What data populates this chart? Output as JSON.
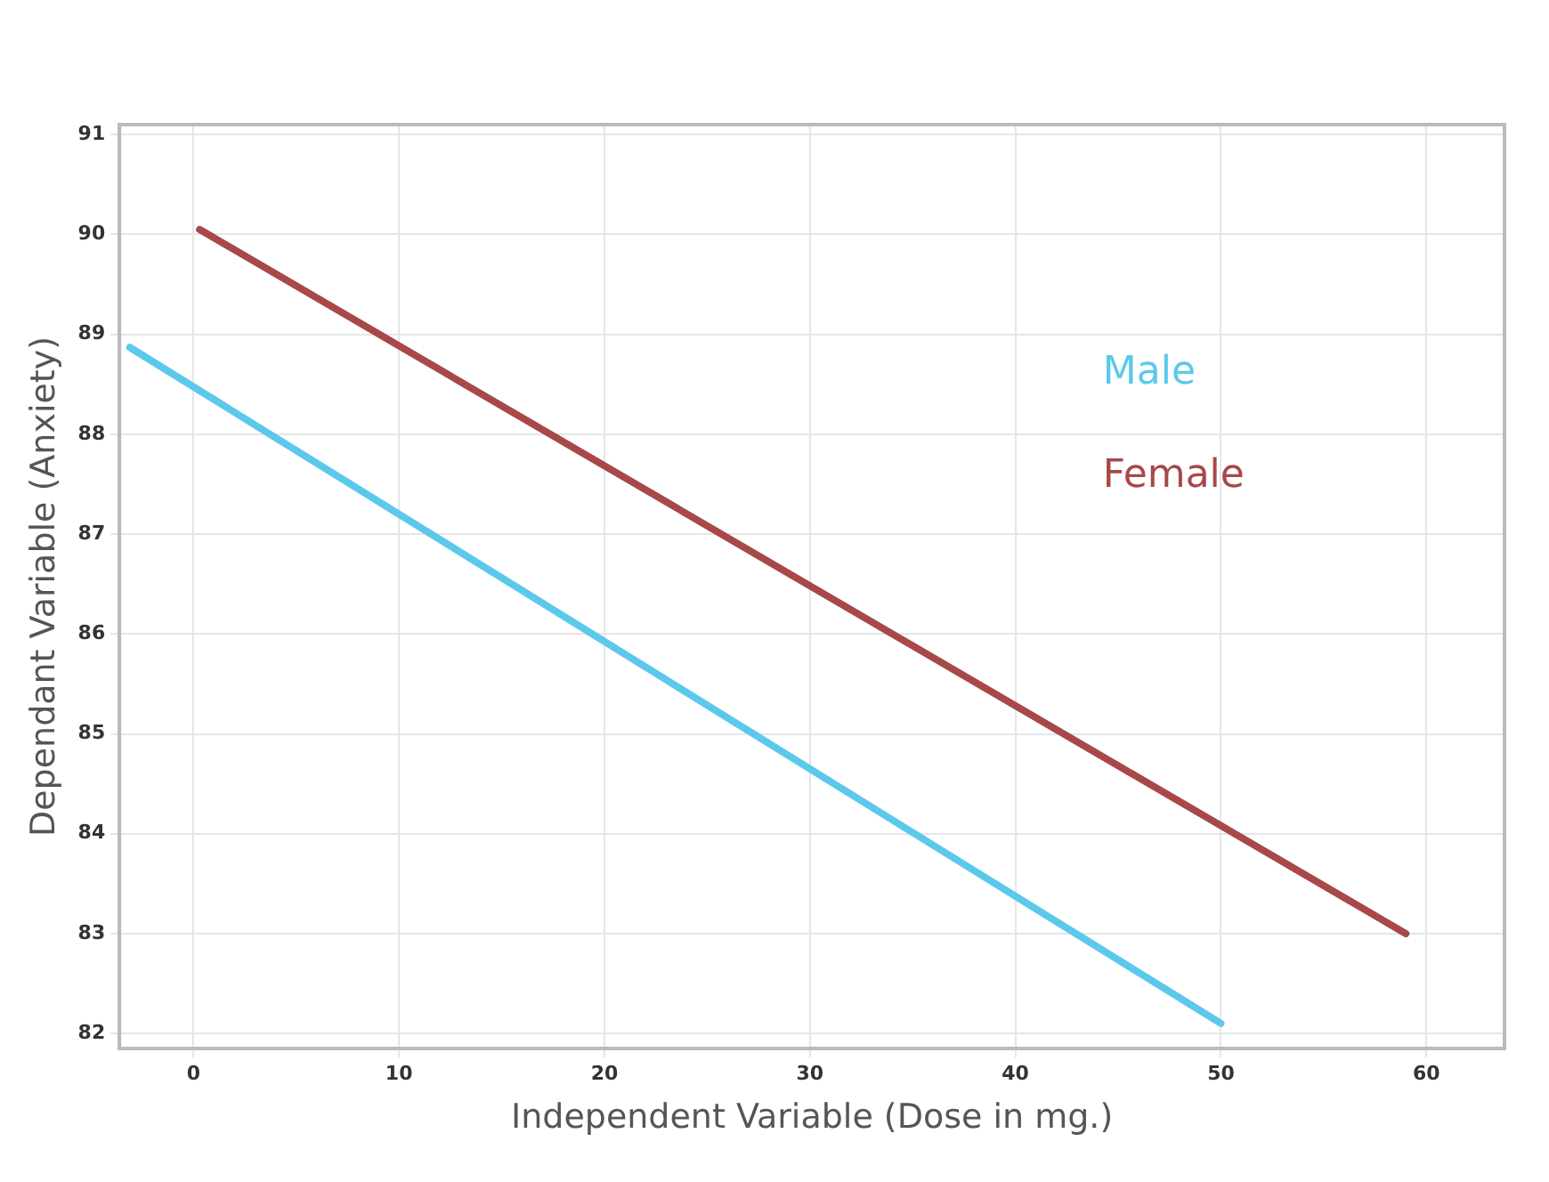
{
  "chart_data": {
    "type": "line",
    "xlabel": "Independent Variable (Dose in mg.)",
    "ylabel": "Dependant Variable (Anxiety)",
    "xlim": [
      -3.6,
      63.8
    ],
    "xticks": [
      0,
      10,
      20,
      30,
      40,
      50,
      60
    ],
    "ylim": [
      81.85,
      91.1
    ],
    "yticks": [
      82,
      83,
      84,
      85,
      86,
      87,
      88,
      89,
      90,
      91
    ],
    "grid": true,
    "legend": "top right",
    "marker": "none",
    "line_style": "solid",
    "series": [
      {
        "name": "Male",
        "color": "#5bc8ec",
        "x": [
          -3.1,
          50
        ],
        "values": [
          88.87,
          82.1
        ]
      },
      {
        "name": "Female",
        "color": "#a84848",
        "x": [
          0.3,
          59
        ],
        "values": [
          90.05,
          83.0
        ]
      }
    ]
  }
}
